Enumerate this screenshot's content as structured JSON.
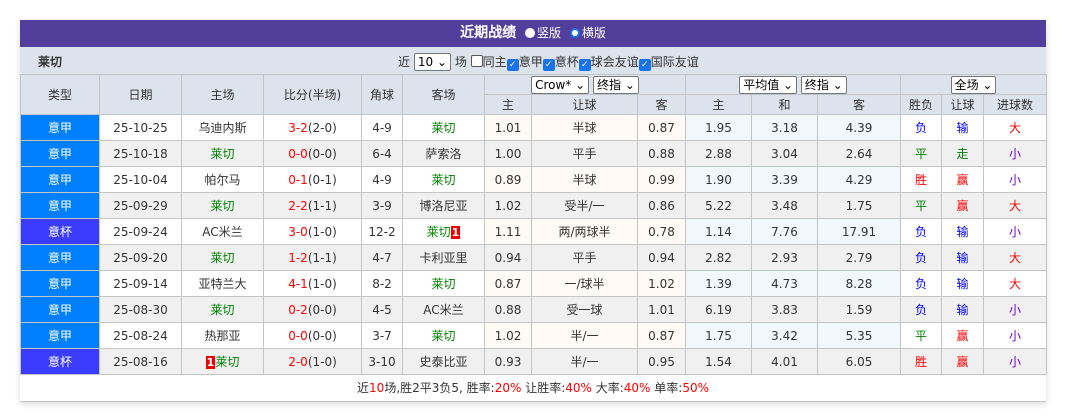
{
  "title": "近期战绩",
  "view_options": [
    {
      "label": "竖版",
      "selected": false
    },
    {
      "label": "横版",
      "selected": true
    }
  ],
  "team": "莱切",
  "filters": {
    "prefix": "近",
    "count": "10",
    "suffix": "场",
    "checkboxes": [
      {
        "label": "同主",
        "checked": false
      },
      {
        "label": "意甲",
        "checked": true
      },
      {
        "label": "意杯",
        "checked": true
      },
      {
        "label": "球会友谊",
        "checked": true
      },
      {
        "label": "国际友谊",
        "checked": true
      }
    ]
  },
  "headers": {
    "type": "类型",
    "date": "日期",
    "home": "主场",
    "score": "比分(半场)",
    "corner": "角球",
    "away": "客场",
    "company": "Crow*",
    "odds_kind": "终指",
    "avg": "平均值",
    "avg_kind": "终指",
    "scope": "全场",
    "sub": [
      "主",
      "让球",
      "客",
      "主",
      "和",
      "客",
      "胜负",
      "让球",
      "进球数"
    ]
  },
  "colors": {
    "league": "#0080ff",
    "cup": "#3c3cff",
    "title_bar": "#523f9c"
  },
  "rows": [
    {
      "type": "意甲",
      "date": "25-10-25",
      "home": "乌迪内斯",
      "home_card": "",
      "score": "3-2",
      "half": "(2-0)",
      "corner": "4-9",
      "away": "莱切",
      "away_card": "",
      "o1": "1.01",
      "hc": "半球",
      "o2": "0.87",
      "a1": "1.95",
      "ad": "3.18",
      "a2": "4.39",
      "wl": "负",
      "ah": "输",
      "ou": "大"
    },
    {
      "type": "意甲",
      "date": "25-10-18",
      "home": "莱切",
      "home_card": "",
      "score": "0-0",
      "half": "(0-0)",
      "corner": "6-4",
      "away": "萨索洛",
      "away_card": "",
      "o1": "1.00",
      "hc": "平手",
      "o2": "0.88",
      "a1": "2.88",
      "ad": "3.04",
      "a2": "2.64",
      "wl": "平",
      "ah": "走",
      "ou": "小"
    },
    {
      "type": "意甲",
      "date": "25-10-04",
      "home": "帕尔马",
      "home_card": "",
      "score": "0-1",
      "half": "(0-1)",
      "corner": "4-9",
      "away": "莱切",
      "away_card": "",
      "o1": "0.89",
      "hc": "半球",
      "o2": "0.99",
      "a1": "1.90",
      "ad": "3.39",
      "a2": "4.29",
      "wl": "胜",
      "ah": "赢",
      "ou": "小"
    },
    {
      "type": "意甲",
      "date": "25-09-29",
      "home": "莱切",
      "home_card": "",
      "score": "2-2",
      "half": "(1-1)",
      "corner": "3-9",
      "away": "博洛尼亚",
      "away_card": "",
      "o1": "1.02",
      "hc": "受半/一",
      "o2": "0.86",
      "a1": "5.22",
      "ad": "3.48",
      "a2": "1.75",
      "wl": "平",
      "ah": "赢",
      "ou": "大"
    },
    {
      "type": "意杯",
      "date": "25-09-24",
      "home": "AC米兰",
      "home_card": "",
      "score": "3-0",
      "half": "(1-0)",
      "corner": "12-2",
      "away": "莱切",
      "away_card": "1",
      "o1": "1.11",
      "hc": "两/两球半",
      "o2": "0.78",
      "a1": "1.14",
      "ad": "7.76",
      "a2": "17.91",
      "wl": "负",
      "ah": "输",
      "ou": "小"
    },
    {
      "type": "意甲",
      "date": "25-09-20",
      "home": "莱切",
      "home_card": "",
      "score": "1-2",
      "half": "(1-1)",
      "corner": "4-7",
      "away": "卡利亚里",
      "away_card": "",
      "o1": "0.94",
      "hc": "平手",
      "o2": "0.94",
      "a1": "2.82",
      "ad": "2.93",
      "a2": "2.79",
      "wl": "负",
      "ah": "输",
      "ou": "大"
    },
    {
      "type": "意甲",
      "date": "25-09-14",
      "home": "亚特兰大",
      "home_card": "",
      "score": "4-1",
      "half": "(1-0)",
      "corner": "8-2",
      "away": "莱切",
      "away_card": "",
      "o1": "0.87",
      "hc": "一/球半",
      "o2": "1.02",
      "a1": "1.39",
      "ad": "4.73",
      "a2": "8.28",
      "wl": "负",
      "ah": "输",
      "ou": "大"
    },
    {
      "type": "意甲",
      "date": "25-08-30",
      "home": "莱切",
      "home_card": "",
      "score": "0-2",
      "half": "(0-0)",
      "corner": "4-5",
      "away": "AC米兰",
      "away_card": "",
      "o1": "0.88",
      "hc": "受一球",
      "o2": "1.01",
      "a1": "6.19",
      "ad": "3.83",
      "a2": "1.59",
      "wl": "负",
      "ah": "输",
      "ou": "小"
    },
    {
      "type": "意甲",
      "date": "25-08-24",
      "home": "热那亚",
      "home_card": "",
      "score": "0-0",
      "half": "(0-0)",
      "corner": "3-7",
      "away": "莱切",
      "away_card": "",
      "o1": "1.02",
      "hc": "半/一",
      "o2": "0.87",
      "a1": "1.75",
      "ad": "3.42",
      "a2": "5.35",
      "wl": "平",
      "ah": "赢",
      "ou": "小"
    },
    {
      "type": "意杯",
      "date": "25-08-16",
      "home": "莱切",
      "home_card": "1",
      "score": "2-0",
      "half": "(1-0)",
      "corner": "3-10",
      "away": "史泰比亚",
      "away_card": "",
      "o1": "0.93",
      "hc": "半/一",
      "o2": "0.95",
      "a1": "1.54",
      "ad": "4.01",
      "a2": "6.05",
      "wl": "胜",
      "ah": "赢",
      "ou": "小"
    }
  ],
  "footer": {
    "t1": "近",
    "n": "10",
    "t2": "场,胜2平3负5, 胜率:",
    "win": "20%",
    "t3": " 让胜率:",
    "ah": "40%",
    "t4": " 大率:",
    "over": "40%",
    "t5": " 单率:",
    "odd": "50%"
  }
}
